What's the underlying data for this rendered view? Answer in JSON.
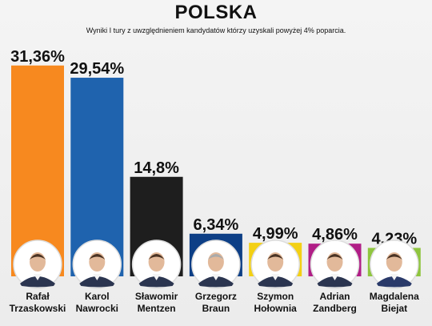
{
  "title": "POLSKA",
  "subtitle": "Wyniki I tury z uwzględnieniem kandydatów którzy uzyskali powyżej 4% poparcia.",
  "chart_data": {
    "type": "bar",
    "title": "POLSKA",
    "subtitle": "Wyniki I tury z uwzględnieniem kandydatów którzy uzyskali powyżej 4% poparcia.",
    "categories": [
      [
        "Rafał",
        "Trzaskowski"
      ],
      [
        "Karol",
        "Nawrocki"
      ],
      [
        "Sławomir",
        "Mentzen"
      ],
      [
        "Grzegorz",
        "Braun"
      ],
      [
        "Szymon",
        "Hołownia"
      ],
      [
        "Adrian",
        "Zandberg"
      ],
      [
        "Magdalena",
        "Biejat"
      ]
    ],
    "values": [
      31.36,
      29.54,
      14.8,
      6.34,
      4.99,
      4.86,
      4.23
    ],
    "value_labels": [
      "31,36%",
      "29,54%",
      "14,8%",
      "6,34%",
      "4,99%",
      "4,86%",
      "4,23%"
    ],
    "colors": [
      "#f7891f",
      "#1f63ae",
      "#1e1e1e",
      "#0d3f86",
      "#f3d014",
      "#b01e86",
      "#8fc53f"
    ],
    "ylim": [
      0,
      33
    ],
    "xlabel": "",
    "ylabel": "",
    "grid": false,
    "legend": "none"
  }
}
